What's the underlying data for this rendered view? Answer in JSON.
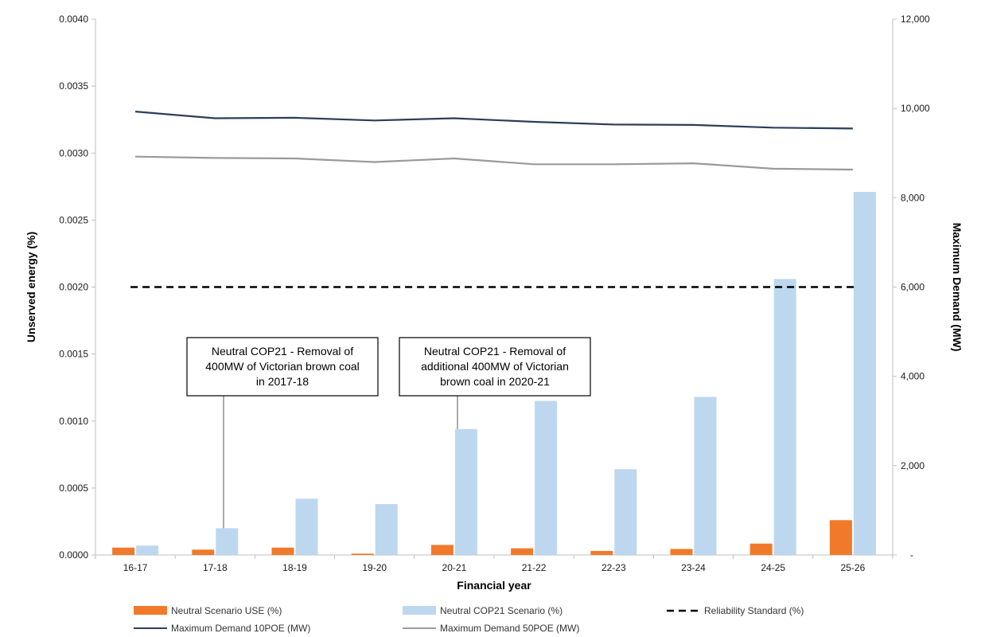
{
  "chart_data": {
    "type": "bar",
    "categories": [
      "16-17",
      "17-18",
      "18-19",
      "19-20",
      "20-21",
      "21-22",
      "22-23",
      "23-24",
      "24-25",
      "25-26"
    ],
    "xlabel": "Financial year",
    "ylabel": "Unserved energy (%)",
    "y2label": "Maximum Demand (MW)",
    "ylim": [
      0,
      0.004
    ],
    "y2lim": [
      0,
      12000
    ],
    "y_ticks": [
      "0.0000",
      "0.0005",
      "0.0010",
      "0.0015",
      "0.0020",
      "0.0025",
      "0.0030",
      "0.0035",
      "0.0040"
    ],
    "y2_ticks": [
      "-",
      "2,000",
      "4,000",
      "6,000",
      "8,000",
      "10,000",
      "12,000"
    ],
    "grid": false,
    "legend_position": "bottom",
    "series": [
      {
        "name": "Neutral Scenario USE (%)",
        "type": "bar",
        "axis": "left",
        "color": "#f07a2a",
        "values": [
          5.5e-05,
          4e-05,
          5.5e-05,
          1e-05,
          7.5e-05,
          5e-05,
          3e-05,
          4.5e-05,
          8.5e-05,
          0.00026
        ]
      },
      {
        "name": "Neutral COP21 Scenario (%)",
        "type": "bar",
        "axis": "left",
        "color": "#bdd7ee",
        "values": [
          7e-05,
          0.0002,
          0.00042,
          0.00038,
          0.00094,
          0.00115,
          0.00064,
          0.00118,
          0.00206,
          0.00271
        ]
      },
      {
        "name": "Reliability Standard (%)",
        "type": "line",
        "axis": "left",
        "color": "#000000",
        "dash": true,
        "values": [
          0.002,
          0.002,
          0.002,
          0.002,
          0.002,
          0.002,
          0.002,
          0.002,
          0.002,
          0.002
        ]
      },
      {
        "name": "Maximum Demand 10POE (MW)",
        "type": "line",
        "axis": "right",
        "color": "#2d3e57",
        "values": [
          9930,
          9780,
          9790,
          9730,
          9780,
          9700,
          9640,
          9630,
          9570,
          9550
        ]
      },
      {
        "name": "Maximum Demand 50POE (MW)",
        "type": "line",
        "axis": "right",
        "color": "#9a9a9a",
        "values": [
          8920,
          8890,
          8880,
          8800,
          8880,
          8750,
          8750,
          8770,
          8650,
          8630
        ]
      }
    ],
    "annotations": [
      {
        "lines": [
          "Neutral COP21 - Removal of",
          "400MW of Victorian brown coal",
          "in 2017-18"
        ],
        "category": "17-18"
      },
      {
        "lines": [
          "Neutral COP21 - Removal of",
          "additional 400MW of Victorian",
          "brown coal in 2020-21"
        ],
        "category": "20-21"
      }
    ]
  }
}
